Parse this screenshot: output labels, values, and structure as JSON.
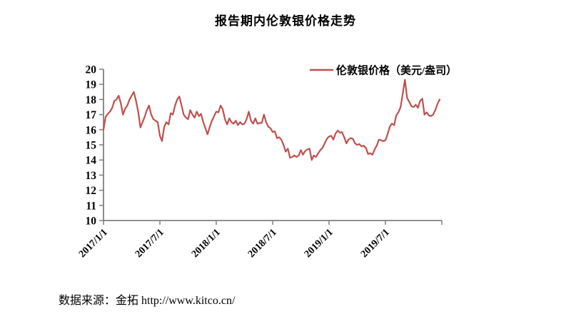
{
  "title": "报告期内伦敦银价格走势",
  "legend": {
    "label": "伦敦银价格（美元/盎司）"
  },
  "source": "数据来源：金拓 http://www.kitco.cn/",
  "chart_data": {
    "type": "line",
    "title": "报告期内伦敦银价格走势",
    "xlabel": "",
    "ylabel": "",
    "ylim": [
      10,
      20
    ],
    "y_tick_interval": 1,
    "x_tick_labels": [
      "2017/1/1",
      "2017/7/1",
      "2018/1/1",
      "2018/7/1",
      "2019/1/1",
      "2019/7/1"
    ],
    "x_tick_weeks": [
      0,
      26,
      52,
      78,
      104,
      130,
      156
    ],
    "x_total_weeks": 156,
    "grid": false,
    "legend_position": "top-right",
    "line_color": "#c0504d",
    "axis_color": "#808080",
    "series": [
      {
        "name": "伦敦银价格（美元/盎司）",
        "unit": "美元/盎司",
        "sampling": "weekly",
        "values": [
          16.0,
          16.85,
          17.05,
          17.2,
          17.45,
          17.9,
          18.0,
          18.25,
          17.75,
          17.0,
          17.4,
          17.6,
          18.0,
          18.25,
          18.5,
          17.9,
          17.2,
          16.15,
          16.5,
          16.85,
          17.3,
          17.6,
          17.0,
          16.7,
          16.6,
          16.5,
          15.6,
          15.25,
          16.2,
          16.5,
          16.35,
          17.1,
          17.0,
          17.6,
          18.0,
          18.2,
          17.6,
          17.0,
          16.8,
          16.7,
          17.3,
          17.0,
          16.8,
          17.2,
          16.9,
          17.05,
          16.5,
          16.1,
          15.7,
          16.2,
          16.6,
          16.9,
          17.2,
          17.15,
          17.6,
          17.35,
          16.7,
          16.35,
          16.75,
          16.5,
          16.4,
          16.6,
          16.3,
          16.5,
          16.35,
          16.4,
          16.7,
          17.2,
          16.6,
          16.4,
          16.75,
          16.4,
          16.45,
          16.45,
          17.0,
          16.5,
          16.2,
          16.1,
          15.85,
          15.9,
          15.45,
          15.5,
          15.35,
          15.0,
          14.55,
          14.75,
          14.15,
          14.2,
          14.3,
          14.2,
          14.3,
          14.65,
          14.35,
          14.6,
          14.7,
          14.75,
          14.0,
          14.3,
          14.2,
          14.45,
          14.65,
          14.8,
          15.1,
          15.4,
          15.55,
          15.6,
          15.35,
          15.75,
          15.95,
          15.8,
          15.85,
          15.5,
          15.1,
          15.35,
          15.45,
          15.4,
          15.1,
          15.0,
          15.05,
          14.9,
          14.95,
          14.8,
          14.4,
          14.45,
          14.35,
          14.7,
          14.95,
          15.35,
          15.3,
          15.25,
          15.3,
          15.7,
          16.2,
          16.4,
          16.3,
          16.95,
          17.15,
          17.5,
          18.4,
          19.3,
          18.1,
          17.85,
          17.55,
          17.5,
          17.65,
          17.45,
          17.9,
          18.05,
          17.0,
          17.15,
          16.95,
          16.9,
          17.0,
          17.3,
          17.7,
          18.0
        ]
      }
    ]
  }
}
